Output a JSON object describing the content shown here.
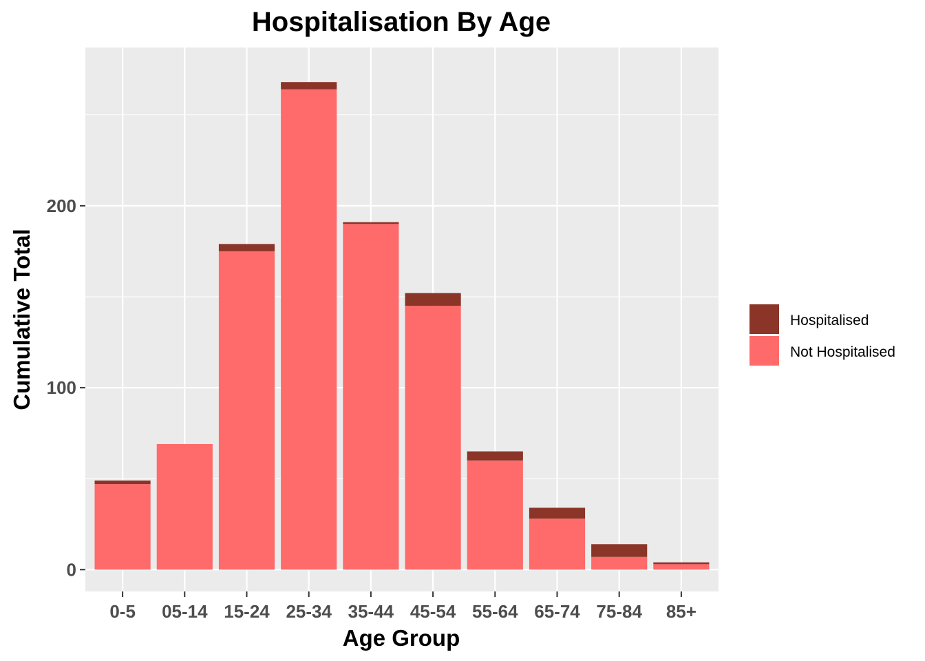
{
  "chart_data": {
    "type": "bar",
    "stacked": true,
    "title": "Hospitalisation By Age",
    "xlabel": "Age Group",
    "ylabel": "Cumulative Total",
    "categories": [
      "0-5",
      "05-14",
      "15-24",
      "25-34",
      "35-44",
      "45-54",
      "55-64",
      "65-74",
      "75-84",
      "85+"
    ],
    "series": [
      {
        "name": "Not Hospitalised",
        "color": "#ff6a6a",
        "values": [
          47,
          69,
          175,
          264,
          190,
          145,
          60,
          28,
          7,
          3
        ]
      },
      {
        "name": "Hospitalised",
        "color": "#8b3428",
        "values": [
          2,
          0,
          4,
          4,
          1,
          7,
          5,
          6,
          7,
          1
        ]
      }
    ],
    "ylim": [
      -12,
      287
    ],
    "yticks": [
      0,
      100,
      200
    ],
    "grid": true,
    "legend_position": "right",
    "legend_order": [
      "Hospitalised",
      "Not Hospitalised"
    ]
  }
}
